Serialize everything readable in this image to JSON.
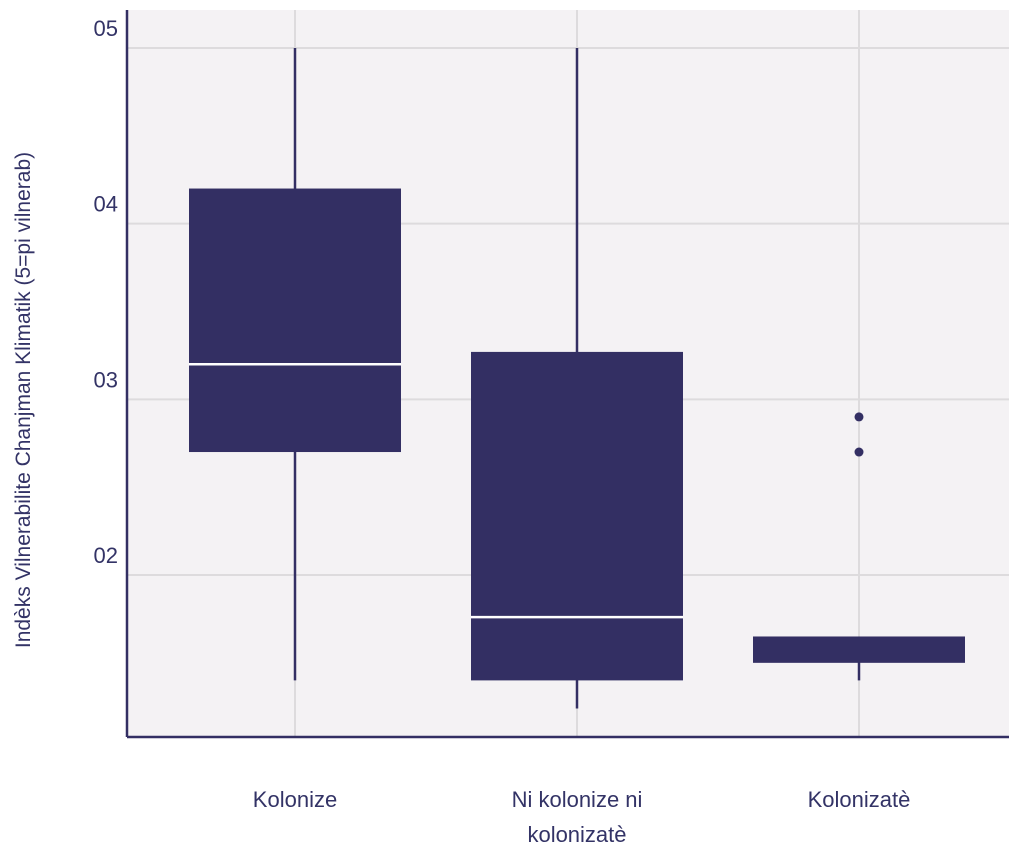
{
  "chart_data": {
    "type": "box",
    "title": "",
    "xlabel": "",
    "ylabel": "Indèks Vilnerabilite Chanjman Klimatik (5=pi vilnerab)",
    "ylim": [
      1.1,
      5.2
    ],
    "grid": true,
    "legend": "none",
    "yticks": [
      {
        "value": 2,
        "label": "02"
      },
      {
        "value": 3,
        "label": "03"
      },
      {
        "value": 4,
        "label": "04"
      },
      {
        "value": 5,
        "label": "05"
      }
    ],
    "categories": [
      {
        "label_lines": [
          "Kolonize"
        ],
        "whisker_low": 1.4,
        "q1": 2.7,
        "median": 3.2,
        "q3": 4.2,
        "whisker_high": 5.0,
        "outliers": []
      },
      {
        "label_lines": [
          "Ni kolonize ni",
          "kolonizatè"
        ],
        "whisker_low": 1.24,
        "q1": 1.4,
        "median": 1.76,
        "q3": 3.27,
        "whisker_high": 5.0,
        "outliers": []
      },
      {
        "label_lines": [
          "Kolonizatè"
        ],
        "whisker_low": 1.4,
        "q1": 1.5,
        "median": 1.65,
        "q3": 1.65,
        "whisker_high": 1.65,
        "outliers": [
          2.9,
          2.7
        ]
      }
    ]
  },
  "colors": {
    "box": "#332f63",
    "median": "#ffffff",
    "panel": "#f4f2f4",
    "grid": "#dddbdd",
    "axis": "#332f63",
    "text": "#333366"
  }
}
